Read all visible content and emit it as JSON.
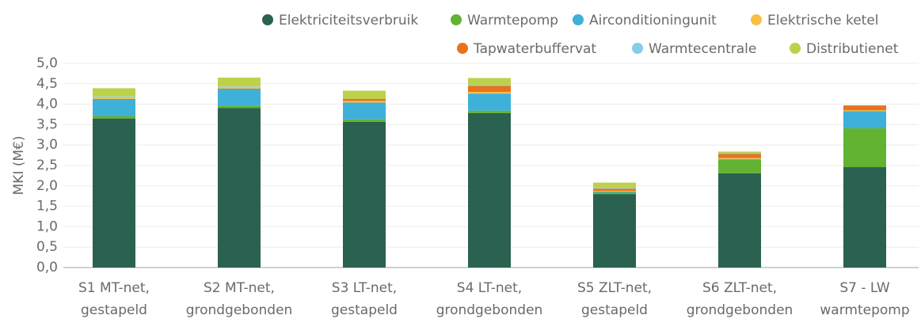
{
  "chart_data": {
    "type": "stacked_bar",
    "ylabel": "MKI (M€)",
    "categories": [
      [
        "S1 MT-net,",
        "gestapeld"
      ],
      [
        "S2 MT-net,",
        "grondgebonden"
      ],
      [
        "S3 LT-net,",
        "gestapeld"
      ],
      [
        "S4 LT-net,",
        "grondgebonden"
      ],
      [
        "S5 ZLT-net,",
        "gestapeld"
      ],
      [
        "S6 ZLT-net,",
        "grondgebonden"
      ],
      [
        "S7 - LW",
        "warmtepomp"
      ]
    ],
    "series": [
      {
        "name": "Elektriciteitsverbruik",
        "color": "#2a6150",
        "values": [
          3.65,
          3.91,
          3.57,
          3.78,
          1.8,
          2.31,
          2.46
        ]
      },
      {
        "name": "Warmtepomp",
        "color": "#62b332",
        "values": [
          0.06,
          0.06,
          0.06,
          0.06,
          0.04,
          0.33,
          0.95
        ]
      },
      {
        "name": "Airconditioningunit",
        "color": "#3fb0d8",
        "values": [
          0.42,
          0.41,
          0.41,
          0.42,
          0.02,
          0.02,
          0.42
        ]
      },
      {
        "name": "Elektrische ketel",
        "color": "#f7c044",
        "values": [
          0.04,
          0.05,
          0.04,
          0.04,
          0.02,
          0.02,
          0.02
        ]
      },
      {
        "name": "Tapwaterbuffervat",
        "color": "#e8731c",
        "values": [
          0,
          0,
          0.05,
          0.15,
          0.05,
          0.1,
          0.12
        ]
      },
      {
        "name": "Warmtecentrale",
        "color": "#85cde8",
        "values": [
          0.02,
          0.02,
          0,
          0.02,
          0.02,
          0.02,
          0
        ]
      },
      {
        "name": "Distributienet",
        "color": "#bdd14a",
        "values": [
          0.2,
          0.2,
          0.2,
          0.17,
          0.13,
          0.04,
          0
        ]
      }
    ],
    "ylim": [
      0,
      5
    ],
    "yticks": [
      {
        "value": 0,
        "label": "0,0"
      },
      {
        "value": 0.5,
        "label": "0,5"
      },
      {
        "value": 1,
        "label": "1,0"
      },
      {
        "value": 1.5,
        "label": "1,5"
      },
      {
        "value": 2,
        "label": "2,0"
      },
      {
        "value": 2.5,
        "label": "2,5"
      },
      {
        "value": 3,
        "label": "3,0"
      },
      {
        "value": 3.5,
        "label": "3,5"
      },
      {
        "value": 4,
        "label": "4,0"
      },
      {
        "value": 4.5,
        "label": "4,5"
      },
      {
        "value": 5,
        "label": "5,0"
      }
    ],
    "grid": true
  }
}
